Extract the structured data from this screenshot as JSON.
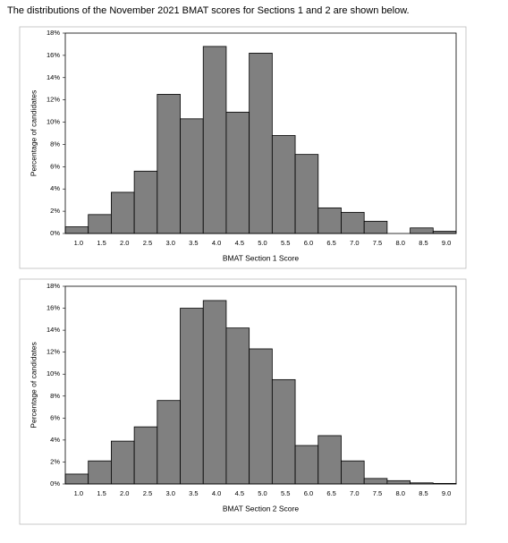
{
  "intro": "The distributions of the November 2021 BMAT scores for Sections 1 and 2 are shown below.",
  "chart_data": [
    {
      "type": "bar",
      "x_label": "BMAT Section 1 Score",
      "y_label": "Percentage of candidates",
      "categories": [
        "1.0",
        "1.5",
        "2.0",
        "2.5",
        "3.0",
        "3.5",
        "4.0",
        "4.5",
        "5.0",
        "5.5",
        "6.0",
        "6.5",
        "7.0",
        "7.5",
        "8.0",
        "8.5",
        "9.0"
      ],
      "values": [
        0.6,
        1.7,
        3.7,
        5.6,
        12.5,
        10.3,
        16.8,
        10.9,
        16.2,
        8.8,
        7.1,
        2.3,
        1.9,
        1.1,
        0,
        0.5,
        0.2
      ],
      "color": "#808080",
      "ylim": [
        0,
        18
      ],
      "yticks": [
        {
          "value": 0,
          "label": "0%"
        },
        {
          "value": 2,
          "label": "2%"
        },
        {
          "value": 4,
          "label": "4%"
        },
        {
          "value": 6,
          "label": "6%"
        },
        {
          "value": 8,
          "label": "8%"
        },
        {
          "value": 10,
          "label": "10%"
        },
        {
          "value": 12,
          "label": "12%"
        },
        {
          "value": 14,
          "label": "14%"
        },
        {
          "value": 16,
          "label": "16%"
        },
        {
          "value": 18,
          "label": "18%"
        }
      ]
    },
    {
      "type": "bar",
      "x_label": "BMAT Section 2 Score",
      "y_label": "Percentage of candidates",
      "categories": [
        "1.0",
        "1.5",
        "2.0",
        "2.5",
        "3.0",
        "3.5",
        "4.0",
        "4.5",
        "5.0",
        "5.5",
        "6.0",
        "6.5",
        "7.0",
        "7.5",
        "8.0",
        "8.5",
        "9.0"
      ],
      "values": [
        0.9,
        2.1,
        3.9,
        5.2,
        7.6,
        16.0,
        16.7,
        14.2,
        12.3,
        9.5,
        3.5,
        4.4,
        2.1,
        0.5,
        0.3,
        0.1,
        0.05
      ],
      "color": "#808080",
      "ylim": [
        0,
        18
      ],
      "yticks": [
        {
          "value": 0,
          "label": "0%"
        },
        {
          "value": 2,
          "label": "2%"
        },
        {
          "value": 4,
          "label": "4%"
        },
        {
          "value": 6,
          "label": "6%"
        },
        {
          "value": 8,
          "label": "8%"
        },
        {
          "value": 10,
          "label": "10%"
        },
        {
          "value": 12,
          "label": "12%"
        },
        {
          "value": 14,
          "label": "14%"
        },
        {
          "value": 16,
          "label": "16%"
        },
        {
          "value": 18,
          "label": "18%"
        }
      ]
    }
  ]
}
